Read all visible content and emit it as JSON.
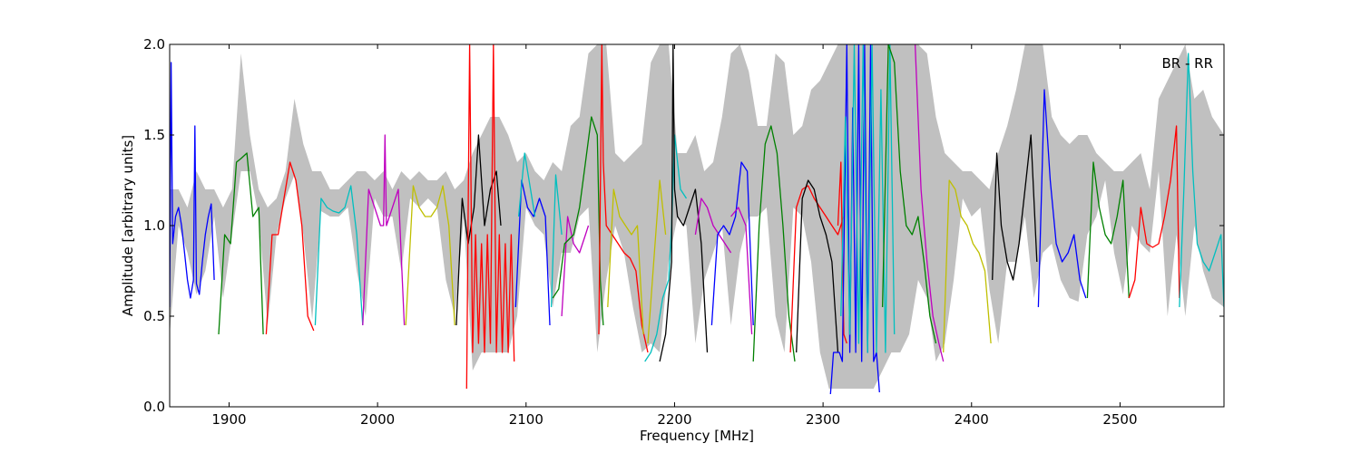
{
  "chart_data": {
    "type": "line",
    "title": "",
    "xlabel": "Frequency [MHz]",
    "ylabel": "Amplitude [arbitrary units]",
    "annotation": "BR - RR",
    "legend": "none",
    "grid": false,
    "xlim": [
      1860,
      2570
    ],
    "ylim": [
      0.0,
      2.0
    ],
    "xticks": [
      1900,
      2000,
      2100,
      2200,
      2300,
      2400,
      2500
    ],
    "yticks": [
      0.0,
      0.5,
      1.0,
      1.5,
      2.0
    ],
    "xtick_labels": [
      "1900",
      "2000",
      "2100",
      "2200",
      "2300",
      "2400",
      "2500"
    ],
    "ytick_labels": [
      "0.0",
      "0.5",
      "1.0",
      "1.5",
      "2.0"
    ],
    "envelope": {
      "color": "#c0c0c0",
      "x": [
        1860,
        1866,
        1872,
        1878,
        1884,
        1890,
        1896,
        1902,
        1908,
        1914,
        1920,
        1926,
        1932,
        1938,
        1944,
        1950,
        1956,
        1962,
        1968,
        1974,
        1980,
        1986,
        1992,
        1998,
        2004,
        2010,
        2016,
        2022,
        2028,
        2034,
        2040,
        2046,
        2052,
        2058,
        2064,
        2070,
        2076,
        2082,
        2088,
        2094,
        2100,
        2106,
        2112,
        2118,
        2124,
        2130,
        2136,
        2142,
        2148,
        2154,
        2160,
        2166,
        2172,
        2178,
        2184,
        2190,
        2196,
        2202,
        2208,
        2214,
        2220,
        2226,
        2232,
        2238,
        2244,
        2250,
        2256,
        2262,
        2268,
        2274,
        2280,
        2286,
        2292,
        2298,
        2304,
        2310,
        2316,
        2322,
        2328,
        2334,
        2340,
        2346,
        2352,
        2358,
        2364,
        2370,
        2376,
        2382,
        2388,
        2394,
        2400,
        2406,
        2412,
        2418,
        2424,
        2430,
        2436,
        2442,
        2448,
        2454,
        2460,
        2466,
        2472,
        2478,
        2484,
        2490,
        2496,
        2502,
        2508,
        2514,
        2520,
        2526,
        2532,
        2538,
        2544,
        2550,
        2556,
        2562,
        2570
      ],
      "lower": [
        0.4,
        1.0,
        0.85,
        0.62,
        0.75,
        1.05,
        0.6,
        0.95,
        1.3,
        1.3,
        1.05,
        0.45,
        0.95,
        1.15,
        1.28,
        0.95,
        0.48,
        1.08,
        1.05,
        1.05,
        1.1,
        0.75,
        0.5,
        1.15,
        1.05,
        1.05,
        0.75,
        1.15,
        1.1,
        1.15,
        1.1,
        0.7,
        0.5,
        1.05,
        0.2,
        0.3,
        0.3,
        0.3,
        0.3,
        0.5,
        1.1,
        1.0,
        0.95,
        0.55,
        0.85,
        0.85,
        1.05,
        1.1,
        0.3,
        0.7,
        1.0,
        0.85,
        0.55,
        0.3,
        0.35,
        0.3,
        0.8,
        1.05,
        1.0,
        0.35,
        0.7,
        0.85,
        1.0,
        0.45,
        0.85,
        1.05,
        1.05,
        1.1,
        0.5,
        0.3,
        1.1,
        1.05,
        0.8,
        0.3,
        0.1,
        0.1,
        0.1,
        0.1,
        0.1,
        0.1,
        0.2,
        0.3,
        0.3,
        0.4,
        0.7,
        0.6,
        0.25,
        0.35,
        0.7,
        1.15,
        1.05,
        1.1,
        0.65,
        0.35,
        0.8,
        0.8,
        1.05,
        0.6,
        0.85,
        0.9,
        0.7,
        0.6,
        0.58,
        0.95,
        1.05,
        1.25,
        0.85,
        0.62,
        1.0,
        0.9,
        0.85,
        1.3,
        0.5,
        0.95,
        0.5,
        1.0,
        0.75,
        0.6,
        0.55
      ],
      "upper": [
        1.2,
        1.2,
        1.1,
        1.3,
        1.2,
        1.2,
        1.1,
        1.2,
        1.95,
        1.5,
        1.2,
        1.1,
        1.15,
        1.3,
        1.7,
        1.45,
        1.3,
        1.3,
        1.2,
        1.2,
        1.25,
        1.3,
        1.3,
        1.25,
        1.3,
        1.2,
        1.3,
        1.25,
        1.3,
        1.25,
        1.25,
        1.3,
        1.2,
        1.25,
        1.4,
        1.5,
        1.6,
        1.6,
        1.5,
        1.35,
        1.4,
        1.3,
        1.25,
        1.35,
        1.3,
        1.55,
        1.6,
        1.95,
        2.0,
        2.0,
        1.4,
        1.35,
        1.4,
        1.45,
        1.9,
        2.0,
        2.0,
        1.4,
        1.4,
        1.5,
        1.3,
        1.35,
        1.6,
        1.95,
        2.0,
        1.85,
        1.55,
        1.55,
        1.95,
        1.9,
        1.5,
        1.55,
        1.75,
        1.8,
        1.9,
        2.0,
        2.0,
        2.0,
        2.0,
        2.0,
        2.0,
        2.0,
        2.0,
        2.0,
        2.0,
        1.95,
        1.6,
        1.4,
        1.35,
        1.3,
        1.3,
        1.25,
        1.2,
        1.4,
        1.55,
        1.75,
        2.0,
        2.0,
        2.0,
        1.6,
        1.5,
        1.45,
        1.5,
        1.5,
        1.4,
        1.35,
        1.3,
        1.3,
        1.35,
        1.4,
        1.2,
        1.7,
        1.8,
        1.9,
        2.0,
        1.7,
        1.75,
        1.6,
        1.5
      ]
    },
    "series": [
      {
        "color": "#0000ff",
        "x": [
          1860,
          1861,
          1862,
          1864,
          1866,
          1868,
          1870,
          1872,
          1874,
          1876,
          1877,
          1878,
          1880,
          1882,
          1884,
          1886,
          1888,
          1890
        ],
        "y": [
          0.55,
          1.9,
          0.9,
          1.05,
          1.1,
          1.0,
          0.85,
          0.7,
          0.6,
          0.7,
          1.55,
          0.68,
          0.62,
          0.8,
          0.95,
          1.05,
          1.12,
          0.7
        ]
      },
      {
        "color": "#008000",
        "x": [
          1893,
          1897,
          1901,
          1905,
          1908,
          1912,
          1916,
          1920,
          1923
        ],
        "y": [
          0.4,
          0.95,
          0.9,
          1.35,
          1.37,
          1.4,
          1.05,
          1.1,
          0.4
        ]
      },
      {
        "color": "#ff0000",
        "x": [
          1925,
          1929,
          1933,
          1937,
          1941,
          1945,
          1949,
          1953,
          1957
        ],
        "y": [
          0.4,
          0.95,
          0.95,
          1.15,
          1.35,
          1.25,
          1.0,
          0.5,
          0.42
        ]
      },
      {
        "color": "#00bfbf",
        "x": [
          1958,
          1962,
          1966,
          1970,
          1974,
          1978,
          1982,
          1986,
          1990
        ],
        "y": [
          0.45,
          1.15,
          1.1,
          1.08,
          1.07,
          1.1,
          1.22,
          0.95,
          0.45
        ]
      },
      {
        "color": "#bf00bf",
        "x": [
          1990,
          1994,
          1998,
          2002,
          2004,
          2005,
          2006,
          2010,
          2014,
          2018
        ],
        "y": [
          0.45,
          1.2,
          1.1,
          1.0,
          1.0,
          1.5,
          1.0,
          1.1,
          1.2,
          0.45
        ]
      },
      {
        "color": "#bfbf00",
        "x": [
          2019,
          2024,
          2028,
          2032,
          2036,
          2040,
          2044,
          2048,
          2052
        ],
        "y": [
          0.45,
          1.22,
          1.1,
          1.05,
          1.05,
          1.1,
          1.22,
          1.0,
          0.45
        ]
      },
      {
        "color": "#000000",
        "x": [
          2053,
          2057,
          2061,
          2065,
          2068,
          2072,
          2076,
          2080,
          2083
        ],
        "y": [
          0.45,
          1.15,
          0.9,
          1.1,
          1.5,
          1.0,
          1.2,
          1.3,
          1.0
        ]
      },
      {
        "color": "#ff0000",
        "x": [
          2060,
          2062,
          2064,
          2066,
          2068,
          2070,
          2072,
          2074,
          2076,
          2078,
          2080,
          2082,
          2084,
          2086,
          2088,
          2090,
          2092
        ],
        "y": [
          0.1,
          2.0,
          0.3,
          0.95,
          0.35,
          0.9,
          0.3,
          0.95,
          0.35,
          2.0,
          0.3,
          0.95,
          0.3,
          0.9,
          0.3,
          0.95,
          0.25
        ]
      },
      {
        "color": "#0000ff",
        "x": [
          2093,
          2097,
          2101,
          2105,
          2109,
          2113,
          2116
        ],
        "y": [
          0.55,
          1.25,
          1.1,
          1.05,
          1.15,
          1.05,
          0.45
        ]
      },
      {
        "color": "#00bfbf",
        "x": [
          2095,
          2099,
          2103,
          2106
        ],
        "y": [
          1.05,
          1.4,
          1.2,
          1.05
        ]
      },
      {
        "color": "#00bfbf",
        "x": [
          2117,
          2120,
          2124
        ],
        "y": [
          0.55,
          1.28,
          0.95
        ]
      },
      {
        "color": "#bf00bf",
        "x": [
          2124,
          2128,
          2132,
          2136,
          2140,
          2142
        ],
        "y": [
          0.5,
          1.05,
          0.9,
          0.85,
          0.95,
          1.0
        ]
      },
      {
        "color": "#008000",
        "x": [
          2118,
          2122,
          2126,
          2132,
          2136,
          2140,
          2144,
          2148,
          2150,
          2152
        ],
        "y": [
          0.6,
          0.65,
          0.9,
          0.95,
          1.1,
          1.35,
          1.6,
          1.5,
          0.7,
          0.45
        ]
      },
      {
        "color": "#ff0000",
        "x": [
          2149,
          2151,
          2152,
          2154,
          2158,
          2162,
          2166,
          2170,
          2174,
          2178,
          2182
        ],
        "y": [
          0.4,
          2.0,
          1.35,
          1.0,
          0.95,
          0.9,
          0.85,
          0.82,
          0.75,
          0.45,
          0.3
        ]
      },
      {
        "color": "#bfbf00",
        "x": [
          2155,
          2159,
          2163,
          2167,
          2171,
          2175,
          2179
        ],
        "y": [
          0.55,
          1.2,
          1.05,
          1.0,
          0.95,
          1.0,
          0.4
        ]
      },
      {
        "color": "#00bfbf",
        "x": [
          2180,
          2184,
          2188,
          2192,
          2196,
          2198,
          2200,
          2204,
          2208
        ],
        "y": [
          0.25,
          0.3,
          0.4,
          0.6,
          0.7,
          1.0,
          1.5,
          1.2,
          1.15
        ]
      },
      {
        "color": "#bfbf00",
        "x": [
          2182,
          2186,
          2190,
          2194
        ],
        "y": [
          0.35,
          0.8,
          1.25,
          0.95
        ]
      },
      {
        "color": "#000000",
        "x": [
          2190,
          2194,
          2198,
          2199,
          2200,
          2202,
          2206,
          2210,
          2214,
          2218,
          2222
        ],
        "y": [
          0.25,
          0.4,
          0.8,
          2.0,
          1.2,
          1.05,
          1.0,
          1.1,
          1.2,
          0.9,
          0.3
        ]
      },
      {
        "color": "#bf00bf",
        "x": [
          2214,
          2218,
          2222,
          2226,
          2230,
          2234,
          2238
        ],
        "y": [
          0.95,
          1.15,
          1.1,
          1.0,
          0.95,
          0.9,
          0.85
        ]
      },
      {
        "color": "#0000ff",
        "x": [
          2225,
          2229,
          2233,
          2237,
          2241,
          2245,
          2249,
          2253
        ],
        "y": [
          0.45,
          0.95,
          1.0,
          0.95,
          1.05,
          1.35,
          1.3,
          0.45
        ]
      },
      {
        "color": "#bf00bf",
        "x": [
          2238,
          2243,
          2248,
          2252
        ],
        "y": [
          1.05,
          1.1,
          1.0,
          0.4
        ]
      },
      {
        "color": "#008000",
        "x": [
          2253,
          2257,
          2261,
          2265,
          2269,
          2273,
          2277,
          2281
        ],
        "y": [
          0.25,
          1.0,
          1.45,
          1.55,
          1.4,
          1.0,
          0.5,
          0.25
        ]
      },
      {
        "color": "#ff0000",
        "x": [
          2278,
          2282,
          2286,
          2290,
          2294,
          2298,
          2302,
          2306,
          2310,
          2314
        ],
        "y": [
          0.3,
          1.1,
          1.2,
          1.22,
          1.15,
          1.1,
          1.05,
          1.0,
          0.95,
          1.05
        ]
      },
      {
        "color": "#000000",
        "x": [
          2282,
          2286,
          2290,
          2294,
          2298,
          2302,
          2306,
          2310
        ],
        "y": [
          0.3,
          1.15,
          1.25,
          1.2,
          1.05,
          0.95,
          0.8,
          0.3
        ]
      },
      {
        "color": "#ff0000",
        "x": [
          2310,
          2312,
          2314,
          2316
        ],
        "y": [
          1.0,
          1.35,
          0.4,
          0.35
        ]
      },
      {
        "color": "#0000ff",
        "x": [
          2305,
          2307,
          2309,
          2311,
          2313,
          2316,
          2318,
          2320,
          2322,
          2324,
          2326,
          2328,
          2330,
          2332,
          2334,
          2336,
          2338
        ],
        "y": [
          0.07,
          0.3,
          0.3,
          0.3,
          0.25,
          2.0,
          0.3,
          1.65,
          0.3,
          2.0,
          0.25,
          2.0,
          0.3,
          2.0,
          0.25,
          0.3,
          0.08
        ]
      },
      {
        "color": "#00bfbf",
        "x": [
          2312,
          2315,
          2318,
          2321,
          2324,
          2327,
          2330,
          2333,
          2336,
          2339,
          2342,
          2345,
          2348
        ],
        "y": [
          0.5,
          1.6,
          0.4,
          2.0,
          0.35,
          2.0,
          0.3,
          2.0,
          0.3,
          1.75,
          0.3,
          2.0,
          0.4
        ]
      },
      {
        "color": "#008000",
        "x": [
          2340,
          2344,
          2348,
          2352,
          2356,
          2360,
          2364,
          2368,
          2372,
          2376
        ],
        "y": [
          0.55,
          2.0,
          1.9,
          1.3,
          1.0,
          0.95,
          1.05,
          0.8,
          0.5,
          0.35
        ]
      },
      {
        "color": "#bf00bf",
        "x": [
          2362,
          2366,
          2370,
          2374,
          2378,
          2381
        ],
        "y": [
          2.0,
          1.2,
          0.8,
          0.5,
          0.35,
          0.25
        ]
      },
      {
        "color": "#bfbf00",
        "x": [
          2381,
          2385,
          2389,
          2393,
          2397,
          2401,
          2405,
          2409,
          2413
        ],
        "y": [
          0.3,
          1.25,
          1.2,
          1.05,
          1.0,
          0.9,
          0.85,
          0.75,
          0.35
        ]
      },
      {
        "color": "#000000",
        "x": [
          2414,
          2417,
          2420,
          2424,
          2428,
          2432,
          2436,
          2440,
          2444
        ],
        "y": [
          0.7,
          1.4,
          1.0,
          0.8,
          0.7,
          0.9,
          1.2,
          1.5,
          0.8
        ]
      },
      {
        "color": "#0000ff",
        "x": [
          2445,
          2449,
          2453,
          2457,
          2461,
          2465,
          2469,
          2473,
          2477
        ],
        "y": [
          0.55,
          1.75,
          1.25,
          0.9,
          0.8,
          0.85,
          0.95,
          0.7,
          0.6
        ]
      },
      {
        "color": "#008000",
        "x": [
          2478,
          2482,
          2486,
          2490,
          2494,
          2498,
          2502,
          2506
        ],
        "y": [
          0.6,
          1.35,
          1.1,
          0.95,
          0.9,
          1.05,
          1.25,
          0.6
        ]
      },
      {
        "color": "#ff0000",
        "x": [
          2506,
          2510,
          2514,
          2518,
          2522,
          2526,
          2530,
          2534,
          2538,
          2540
        ],
        "y": [
          0.6,
          0.7,
          1.1,
          0.9,
          0.88,
          0.9,
          1.05,
          1.25,
          1.55,
          0.6
        ]
      },
      {
        "color": "#00bfbf",
        "x": [
          2540,
          2543,
          2546,
          2549,
          2552,
          2556,
          2560,
          2564,
          2568,
          2570
        ],
        "y": [
          0.55,
          1.2,
          1.95,
          1.3,
          0.9,
          0.8,
          0.75,
          0.85,
          0.95,
          0.55
        ]
      }
    ]
  }
}
